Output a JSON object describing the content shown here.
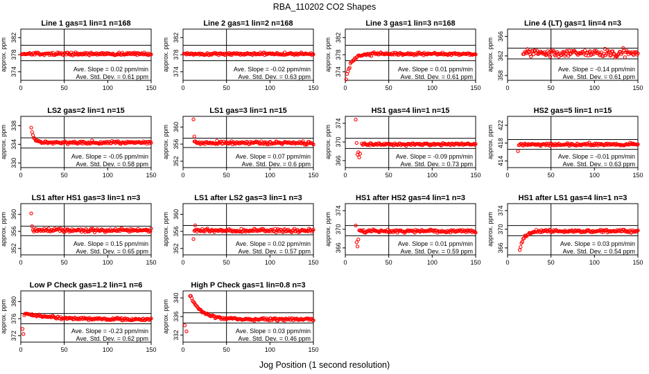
{
  "figure": {
    "title": "RBA_110202  CO2 Shapes",
    "xlabel": "Jog Position (1 second resolution)"
  },
  "chart_data": [
    {
      "type": "scatter",
      "title": "Line 1 gas=1 lin=1 n=168",
      "ylabel": "approx. ppm",
      "xlim": [
        0,
        150
      ],
      "x_ticks": [
        0,
        50,
        100,
        150
      ],
      "ylim": [
        372,
        384
      ],
      "y_ticks": [
        374,
        378,
        382
      ],
      "hline": [
        380.2,
        376.6
      ],
      "vline": 50,
      "series": [
        {
          "color": "#ff0000",
          "pattern": "flat",
          "start_x": 1,
          "end_x": 150,
          "level": 378.2,
          "noise": 0.3
        }
      ],
      "annotations": [
        "Ave. Slope =  0.02  ppm/min",
        "Ave. Std. Dev. =  0.61  ppm"
      ]
    },
    {
      "type": "scatter",
      "title": "Line 2 gas=1 lin=2 n=168",
      "ylabel": "approx. ppm",
      "xlim": [
        0,
        150
      ],
      "x_ticks": [
        0,
        50,
        100,
        150
      ],
      "ylim": [
        372,
        384
      ],
      "y_ticks": [
        374,
        378,
        382
      ],
      "hline": [
        380.2,
        376.6
      ],
      "vline": 50,
      "series": [
        {
          "color": "#ff0000",
          "pattern": "flat",
          "start_x": 1,
          "end_x": 150,
          "level": 378.2,
          "noise": 0.3
        }
      ],
      "annotations": [
        "Ave. Slope =  -0.02  ppm/min",
        "Ave. Std. Dev. =  0.63  ppm"
      ]
    },
    {
      "type": "scatter",
      "title": "Line 3 gas=1 lin=3 n=168",
      "ylabel": "approx. ppm",
      "xlim": [
        0,
        150
      ],
      "x_ticks": [
        0,
        50,
        100,
        150
      ],
      "ylim": [
        372,
        384
      ],
      "y_ticks": [
        374,
        378,
        382
      ],
      "hline": [
        380.2,
        376.6
      ],
      "vline": 50,
      "series": [
        {
          "color": "#ff0000",
          "pattern": "rise",
          "start_x": 1,
          "end_x": 150,
          "level": 378.2,
          "noise": 0.3,
          "start": 372.5,
          "tau": 6
        }
      ],
      "annotations": [
        "Ave. Slope =  0.01  ppm/min",
        "Ave. Std. Dev. =  0.61  ppm"
      ]
    },
    {
      "type": "scatter",
      "title": "Line 4 (LT) gas=1 lin=4 n=3",
      "ylabel": "approx. ppm",
      "xlim": [
        0,
        150
      ],
      "x_ticks": [
        0,
        50,
        100,
        150
      ],
      "ylim": [
        357,
        367.5
      ],
      "y_ticks": [
        358,
        362,
        366
      ],
      "hline": [
        363.6,
        361.4
      ],
      "vline": 50,
      "series": [
        {
          "color": "#ff0000",
          "pattern": "flat",
          "start_x": 18,
          "end_x": 150,
          "level": 362.6,
          "noise": 0.7
        }
      ],
      "annotations": [
        "Ave. Slope =  -0.14  ppm/min",
        "Ave. Std. Dev. =  0.61  ppm"
      ]
    },
    {
      "type": "scatter",
      "title": "LS2 gas=2 lin=1 n=15",
      "ylabel": "approx. ppm",
      "xlim": [
        0,
        150
      ],
      "x_ticks": [
        0,
        50,
        100,
        150
      ],
      "ylim": [
        329,
        340
      ],
      "y_ticks": [
        330,
        334,
        338
      ],
      "hline": [
        335.4,
        333.2
      ],
      "vline": 50,
      "series": [
        {
          "color": "#ff0000",
          "pattern": "decay",
          "start_x": 12,
          "end_x": 150,
          "level": 334.4,
          "noise": 0.3,
          "start": 337.5,
          "tau": 3
        }
      ],
      "annotations": [
        "Ave. Slope =  -0.05  ppm/min",
        "Ave. Std. Dev. =  0.58  ppm"
      ]
    },
    {
      "type": "scatter",
      "title": "LS1 gas=3 lin=1 n=15",
      "ylabel": "approx. ppm",
      "xlim": [
        0,
        150
      ],
      "x_ticks": [
        0,
        50,
        100,
        150
      ],
      "ylim": [
        350.5,
        362.5
      ],
      "y_ticks": [
        352,
        356,
        360
      ],
      "hline": [
        357.4,
        355.2
      ],
      "vline": 50,
      "series": [
        {
          "color": "#ff0000",
          "pattern": "flat",
          "start_x": 13,
          "end_x": 150,
          "level": 356.3,
          "noise": 0.35
        }
      ],
      "outliers": [
        [
          12,
          361.8
        ],
        [
          13,
          357.8
        ]
      ],
      "annotations": [
        "Ave. Slope =  0.07  ppm/min",
        "Ave. Std. Dev. =  0.6  ppm"
      ]
    },
    {
      "type": "scatter",
      "title": "HS1 gas=4 lin=1 n=15",
      "ylabel": "approx. ppm",
      "xlim": [
        0,
        150
      ],
      "x_ticks": [
        0,
        50,
        100,
        150
      ],
      "ylim": [
        364.5,
        375.5
      ],
      "y_ticks": [
        366,
        370,
        374
      ],
      "hline": [
        370.8,
        368.6
      ],
      "vline": 50,
      "series": [
        {
          "color": "#ff0000",
          "pattern": "flat",
          "start_x": 19,
          "end_x": 150,
          "level": 369.5,
          "noise": 0.25
        }
      ],
      "outliers": [
        [
          12,
          374.8
        ],
        [
          13,
          369.8
        ],
        [
          14,
          367.3
        ],
        [
          15,
          367.8
        ],
        [
          16,
          366.7
        ],
        [
          17,
          367.5
        ]
      ],
      "annotations": [
        "Ave. Slope =  -0.09  ppm/min",
        "Ave. Std. Dev. =  0.73  ppm"
      ]
    },
    {
      "type": "scatter",
      "title": "HS2 gas=5 lin=1 n=15",
      "ylabel": "approx. ppm",
      "xlim": [
        0,
        150
      ],
      "x_ticks": [
        0,
        50,
        100,
        150
      ],
      "ylim": [
        412.5,
        424
      ],
      "y_ticks": [
        414,
        418,
        422
      ],
      "hline": [
        418.8,
        416.6
      ],
      "vline": 50,
      "series": [
        {
          "color": "#ff0000",
          "pattern": "flat",
          "start_x": 13,
          "end_x": 150,
          "level": 417.7,
          "noise": 0.3
        }
      ],
      "outliers": [
        [
          12,
          416.2
        ]
      ],
      "annotations": [
        "Ave. Slope =  -0.01  ppm/min",
        "Ave. Std. Dev. =  0.63  ppm"
      ]
    },
    {
      "type": "scatter",
      "title": "LS1 after HS1 gas=3 lin=1 n=3",
      "ylabel": "approx. ppm",
      "xlim": [
        0,
        150
      ],
      "x_ticks": [
        0,
        50,
        100,
        150
      ],
      "ylim": [
        350.5,
        362.5
      ],
      "y_ticks": [
        352,
        356,
        360
      ],
      "hline": [
        357.2,
        355.0
      ],
      "vline": 50,
      "series": [
        {
          "color": "#ff0000",
          "pattern": "flat",
          "start_x": 14,
          "end_x": 150,
          "level": 356.3,
          "noise": 0.4
        }
      ],
      "outliers": [
        [
          12,
          360.2
        ],
        [
          13,
          357.2
        ]
      ],
      "annotations": [
        "Ave. Slope =  0.15  ppm/min",
        "Ave. Std. Dev. =  0.65  ppm"
      ]
    },
    {
      "type": "scatter",
      "title": "LS1 after LS2 gas=3 lin=1 n=3",
      "ylabel": "approx. ppm",
      "xlim": [
        0,
        150
      ],
      "x_ticks": [
        0,
        50,
        100,
        150
      ],
      "ylim": [
        350.5,
        362.5
      ],
      "y_ticks": [
        352,
        356,
        360
      ],
      "hline": [
        357.4,
        355.2
      ],
      "vline": 50,
      "series": [
        {
          "color": "#ff0000",
          "pattern": "flat",
          "start_x": 13,
          "end_x": 150,
          "level": 356.2,
          "noise": 0.35
        }
      ],
      "outliers": [
        [
          12,
          354.2
        ],
        [
          14,
          357.4
        ]
      ],
      "annotations": [
        "Ave. Slope =  0.02  ppm/min",
        "Ave. Std. Dev. =  0.57  ppm"
      ]
    },
    {
      "type": "scatter",
      "title": "HS1 after HS2 gas=4 lin=1 n=3",
      "ylabel": "approx. ppm",
      "xlim": [
        0,
        150
      ],
      "x_ticks": [
        0,
        50,
        100,
        150
      ],
      "ylim": [
        364.5,
        375.5
      ],
      "y_ticks": [
        366,
        370,
        374
      ],
      "hline": [
        370.8,
        368.6
      ],
      "vline": 50,
      "series": [
        {
          "color": "#ff0000",
          "pattern": "flat",
          "start_x": 16,
          "end_x": 150,
          "level": 369.6,
          "noise": 0.35
        }
      ],
      "outliers": [
        [
          12,
          370.8
        ],
        [
          13,
          367.2
        ],
        [
          14,
          366.3
        ],
        [
          15,
          367.8
        ]
      ],
      "annotations": [
        "Ave. Slope =  0.01  ppm/min",
        "Ave. Std. Dev. =  0.59  ppm"
      ]
    },
    {
      "type": "scatter",
      "title": "HS1 after LS1 gas=4 lin=1 n=3",
      "ylabel": "approx. ppm",
      "xlim": [
        0,
        150
      ],
      "x_ticks": [
        0,
        50,
        100,
        150
      ],
      "ylim": [
        364.5,
        375.5
      ],
      "y_ticks": [
        366,
        370,
        374
      ],
      "hline": [
        370.8,
        368.6
      ],
      "vline": 50,
      "series": [
        {
          "color": "#ff0000",
          "pattern": "rise",
          "start_x": 14,
          "end_x": 150,
          "level": 369.6,
          "noise": 0.3,
          "start": 365.5,
          "tau": 5
        }
      ],
      "annotations": [
        "Ave. Slope =  0.03  ppm/min",
        "Ave. Std. Dev. =  0.54  ppm"
      ]
    },
    {
      "type": "scatter",
      "title": "Low P Check gas=1.2 lin=1 n=6",
      "ylabel": "approx. ppm",
      "xlim": [
        0,
        150
      ],
      "x_ticks": [
        0,
        50,
        100,
        150
      ],
      "ylim": [
        370.5,
        382.5
      ],
      "y_ticks": [
        372,
        376,
        380
      ],
      "hline": [
        377.2,
        374.8
      ],
      "vline": 50,
      "series": [
        {
          "color": "#ff0000",
          "pattern": "slowdecay",
          "start_x": 5,
          "end_x": 150,
          "level": 375.8,
          "noise": 0.3,
          "start": 377.2,
          "tau": 35
        }
      ],
      "outliers": [
        [
          2,
          373.6
        ],
        [
          3,
          372.4
        ],
        [
          4,
          376.8
        ]
      ],
      "annotations": [
        "Ave. Slope =  -0.23  ppm/min",
        "Ave. Std. Dev. =  0.62  ppm"
      ]
    },
    {
      "type": "scatter",
      "title": "High P Check gas=1 lin=0.8 n=3",
      "ylabel": "approx. ppm",
      "xlim": [
        0,
        150
      ],
      "x_ticks": [
        0,
        50,
        100,
        150
      ],
      "ylim": [
        330.5,
        341.5
      ],
      "y_ticks": [
        332,
        336,
        340
      ],
      "hline": [
        336.8,
        334.6
      ],
      "vline": 50,
      "series": [
        {
          "color": "#ff0000",
          "pattern": "decay",
          "start_x": 8,
          "end_x": 150,
          "level": 335.4,
          "noise": 0.25,
          "start": 340.5,
          "tau": 13
        }
      ],
      "outliers": [
        [
          2,
          334.1
        ],
        [
          4,
          332.8
        ]
      ],
      "annotations": [
        "Ave. Slope =  0.03  ppm/min",
        "Ave. Std. Dev. =  0.46  ppm"
      ]
    }
  ]
}
